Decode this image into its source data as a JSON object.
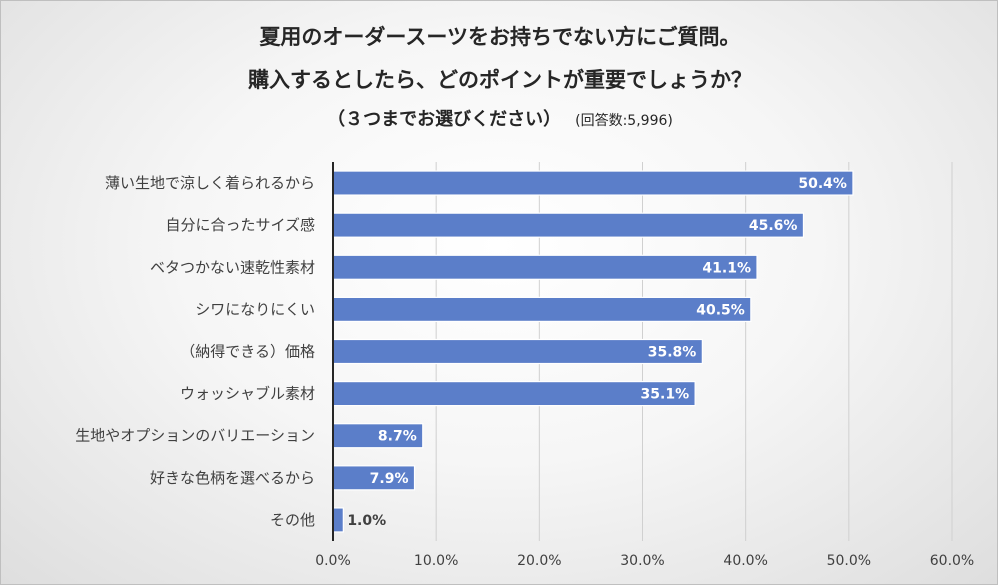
{
  "chart_data": {
    "type": "bar",
    "orientation": "horizontal",
    "title_line1": "夏用のオーダースーツをお持ちでない方にご質問。",
    "title_line2": "購入するとしたら、どのポイントが重要でしょうか？",
    "title_line3": "（３つまでお選びください）",
    "respondents_note": "(回答数:5,996)",
    "categories": [
      "薄い生地で涼しく着られるから",
      "自分に合ったサイズ感",
      "ベタつかない速乾性素材",
      "シワになりにくい",
      "（納得できる）価格",
      "ウォッシャブル素材",
      "生地やオプションのバリエーション",
      "好きな色柄を選べるから",
      "その他"
    ],
    "values": [
      50.4,
      45.6,
      41.1,
      40.5,
      35.8,
      35.1,
      8.7,
      7.9,
      1.0
    ],
    "data_labels": [
      "50.4%",
      "45.6%",
      "41.1%",
      "40.5%",
      "35.8%",
      "35.1%",
      "8.7%",
      "7.9%",
      "1.0%"
    ],
    "xlim": [
      0,
      60
    ],
    "x_ticks": [
      "0.0%",
      "10.0%",
      "20.0%",
      "30.0%",
      "40.0%",
      "50.0%",
      "60.0%"
    ],
    "gridlines": true,
    "bar_color": "#5b7ec9",
    "label_inside_color": "#ffffff",
    "label_outside_color": "#404040"
  }
}
